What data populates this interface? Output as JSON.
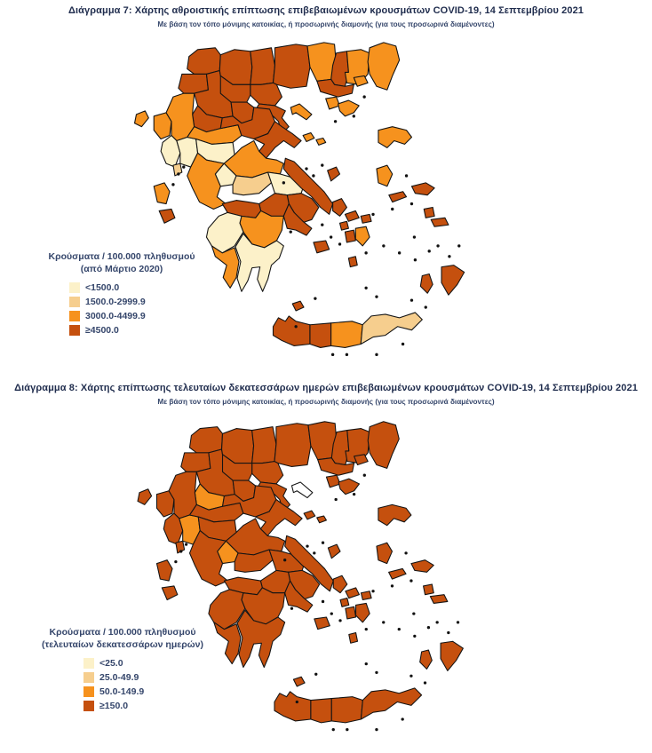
{
  "colors": {
    "cat1": "#FCF1C9",
    "cat2": "#F6CE8E",
    "cat3": "#F6921E",
    "cat4": "#C5500E",
    "no_data": "#FFFFFF",
    "border": "#141414",
    "islet": "#111111",
    "title_text": "#1f2c4d",
    "legend_text": "#35466b"
  },
  "map1": {
    "title": "Διάγραμμα 7: Χάρτης αθροιστικής επίπτωσης επιβεβαιωμένων κρουσμάτων COVID-19, 14 Σεπτεμβρίου 2021",
    "subtitle": "Με βάση τον τόπο μόνιμης κατοικίας, ή προσωρινής διαμονής (για τους προσωρινά διαμένοντες)",
    "legend": {
      "title_line1": "Κρούσματα / 100.000 πληθυσμού",
      "title_line2": "(από Μάρτιο 2020)",
      "items": [
        {
          "label": "<1500.0",
          "category": "cat1"
        },
        {
          "label": "1500.0-2999.9",
          "category": "cat2"
        },
        {
          "label": "3000.0-4499.9",
          "category": "cat3"
        },
        {
          "label": "≥4500.0",
          "category": "cat4"
        }
      ]
    },
    "regions": {
      "florina": "cat4",
      "kastoria": "cat4",
      "kozani": "cat4",
      "grevena": "cat4",
      "pella": "cat4",
      "kilkis": "cat4",
      "serres": "cat4",
      "drama": "cat3",
      "xanthi": "cat4",
      "rhodopi": "cat3",
      "evros": "cat3",
      "kavala": "cat4",
      "thessaloniki": "cat4",
      "imathia": "cat4",
      "pieria": "cat4",
      "chalkidiki": "cat4",
      "athos": "cat3",
      "corfu": "cat3",
      "thesprotia": "cat3",
      "ioannina": "cat3",
      "preveza": "cat1",
      "arta": "cat1",
      "trikala": "cat3",
      "karditsa": "cat1",
      "larissa": "cat4",
      "magnesia": "cat4",
      "sporades": "cat3",
      "phthiotis": "cat3",
      "evrytania": "cat1",
      "aetolia": "cat3",
      "phocis": "cat2",
      "boeotia": "cat1",
      "attica": "cat4",
      "euboea": "cat4",
      "lefkada": "cat2",
      "kefalonia": "cat3",
      "zakynthos": "cat4",
      "corinthia": "cat4",
      "achaia": "cat4",
      "argolis": "cat4",
      "arcadia": "cat3",
      "elis": "cat1",
      "messenia": "cat3",
      "laconia": "cat1",
      "kythira": "cat4",
      "chania": "cat4",
      "rethymno": "cat4",
      "heraklion": "cat3",
      "lasithi": "cat2",
      "thasos": "cat3",
      "samothraki": "cat3",
      "lemnos": "cat3",
      "lesbos": "cat3",
      "chios": "cat3",
      "samos": "cat4",
      "ikaria": "cat4",
      "skyros": "cat4",
      "andros": "cat4",
      "tinos": "cat4",
      "mykonos": "cat4",
      "syros": "cat4",
      "paros": "cat4",
      "naxos": "cat3",
      "milos": "cat4",
      "santorini": "cat4",
      "kos": "cat4",
      "kalymnos": "cat4",
      "rhodes": "cat4",
      "karpathos": "cat4"
    }
  },
  "map2": {
    "title": "Διάγραμμα 8: Χάρτης επίπτωσης τελευταίων δεκατεσσάρων ημερών επιβεβαιωμένων κρουσμάτων COVID-19, 14 Σεπτεμβρίου 2021",
    "subtitle": "Με βάση τον τόπο μόνιμης κατοικίας, ή προσωρινής διαμονής (για τους προσωρινά διαμένοντες)",
    "legend": {
      "title_line1": "Κρούσματα / 100.000 πληθυσμού",
      "title_line2": "(τελευταίων δεκατεσσάρων ημερών)",
      "items": [
        {
          "label": "<25.0",
          "category": "cat1"
        },
        {
          "label": "25.0-49.9",
          "category": "cat2"
        },
        {
          "label": "50.0-149.9",
          "category": "cat3"
        },
        {
          "label": "≥150.0",
          "category": "cat4"
        }
      ]
    },
    "regions": {
      "florina": "cat4",
      "kastoria": "cat4",
      "kozani": "cat4",
      "grevena": "cat3",
      "pella": "cat4",
      "kilkis": "cat4",
      "serres": "cat4",
      "drama": "cat4",
      "xanthi": "cat4",
      "rhodopi": "cat4",
      "evros": "cat4",
      "kavala": "cat4",
      "thessaloniki": "cat4",
      "imathia": "cat4",
      "pieria": "cat4",
      "chalkidiki": "cat4",
      "athos": "no_data",
      "corfu": "cat4",
      "thesprotia": "cat4",
      "ioannina": "cat4",
      "preveza": "cat4",
      "arta": "cat3",
      "trikala": "cat4",
      "karditsa": "cat4",
      "larissa": "cat4",
      "magnesia": "cat4",
      "sporades": "cat4",
      "phthiotis": "cat4",
      "evrytania": "cat3",
      "aetolia": "cat4",
      "phocis": "cat4",
      "boeotia": "cat4",
      "attica": "cat4",
      "euboea": "cat4",
      "lefkada": "cat4",
      "kefalonia": "cat4",
      "zakynthos": "cat4",
      "corinthia": "cat4",
      "achaia": "cat4",
      "argolis": "cat4",
      "arcadia": "cat4",
      "elis": "cat4",
      "messenia": "cat4",
      "laconia": "cat4",
      "kythira": "cat4",
      "chania": "cat4",
      "rethymno": "cat4",
      "heraklion": "cat4",
      "lasithi": "cat4",
      "thasos": "cat4",
      "samothraki": "cat4",
      "lemnos": "cat4",
      "lesbos": "cat4",
      "chios": "cat4",
      "samos": "cat4",
      "ikaria": "cat4",
      "skyros": "cat4",
      "andros": "cat4",
      "tinos": "cat4",
      "mykonos": "cat4",
      "syros": "cat4",
      "paros": "cat4",
      "naxos": "cat4",
      "milos": "cat4",
      "santorini": "cat4",
      "kos": "cat4",
      "kalymnos": "cat4",
      "rhodes": "cat4",
      "karpathos": "cat4"
    }
  }
}
